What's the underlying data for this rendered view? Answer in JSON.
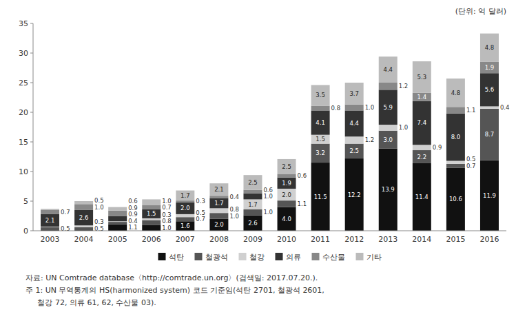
{
  "chart_data": {
    "type": "bar",
    "stacked": true,
    "data_labels": true,
    "grid": false,
    "legend": "bottom",
    "y_label": "(단위: 억 달러)",
    "annotations": [
      "자료: UN Comtrade database〈http://comtrade.un.org〉(검색일: 2017.07.20.).",
      "주 1: UN 무역통계의 HS(harmonized system) 코드 기준임(석탄 2701, 철광석 2601,",
      "     철강 72, 의류 61, 62, 수산물 03)."
    ],
    "categories": [
      "2003",
      "2004",
      "2005",
      "2006",
      "2007",
      "2008",
      "2009",
      "2010",
      "2011",
      "2012",
      "2013",
      "2014",
      "2015",
      "2016"
    ],
    "ylim": [
      0,
      35
    ],
    "yticks": [
      0,
      5,
      10,
      15,
      20,
      25,
      30,
      35
    ],
    "series": [
      {
        "name": "석탄",
        "color": "#111111",
        "values": [
          0.1,
          0.1,
          1.1,
          1.0,
          1.6,
          2.0,
          2.6,
          4.0,
          11.5,
          12.2,
          13.9,
          11.4,
          10.6,
          11.9
        ],
        "value_labels": [
          null,
          null,
          "1.1",
          "1.0",
          "1.6",
          "2.0",
          "2.6",
          "4.0",
          "11.5",
          "12.2",
          "13.9",
          "11.4",
          "10.6",
          "11.9"
        ]
      },
      {
        "name": "철광석",
        "color": "#555555",
        "values": [
          0.5,
          0.5,
          0.4,
          0.8,
          0.7,
          1.0,
          1.0,
          1.1,
          3.2,
          2.5,
          3.0,
          2.2,
          0.7,
          8.7
        ],
        "value_labels": [
          "0.5",
          "0.5",
          "0.4",
          "0.8",
          "0.7",
          "1.0",
          "1.0",
          "1.1",
          "3.2",
          "2.5",
          "3.0",
          "2.2",
          "0.7",
          "8.7"
        ]
      },
      {
        "name": "철강",
        "color": "#d0d0d0",
        "values": [
          0.1,
          0.3,
          0.1,
          0.3,
          0.5,
          0.8,
          1.7,
          2.0,
          1.5,
          1.2,
          1.0,
          0.9,
          0.5,
          0.4
        ],
        "value_labels": [
          null,
          "0.3",
          null,
          "0.3",
          "0.5",
          "0.8",
          "1.7",
          "2.0",
          "1.5",
          "1.2",
          "1.0",
          "0.9",
          "0.5",
          "0.4"
        ]
      },
      {
        "name": "의류",
        "color": "#333333",
        "values": [
          2.1,
          2.6,
          0.9,
          1.5,
          2.0,
          1.7,
          1.0,
          1.9,
          4.1,
          4.4,
          5.9,
          7.4,
          8.0,
          5.6
        ],
        "value_labels": [
          "2.1",
          "2.6",
          "0.9",
          "1.5",
          "2.0",
          "1.7",
          "1.0",
          "1.9",
          "4.1",
          "4.4",
          "5.9",
          "7.4",
          "8.0",
          "5.6"
        ]
      },
      {
        "name": "수산물",
        "color": "#888888",
        "values": [
          0.7,
          1.0,
          0.9,
          0.7,
          0.3,
          0.4,
          0.6,
          0.6,
          0.8,
          1.0,
          1.2,
          1.4,
          1.1,
          1.9
        ],
        "value_labels": [
          "0.7",
          "1.0",
          "0.9",
          "0.7",
          "0.3",
          "0.4",
          "0.6",
          "0.6",
          "0.8",
          "1.0",
          "1.2",
          "1.4",
          "1.1",
          "1.9"
        ]
      },
      {
        "name": "기타",
        "color": "#bbbbbb",
        "values": [
          0.2,
          0.5,
          0.6,
          1.0,
          1.7,
          2.1,
          2.5,
          2.5,
          3.5,
          3.7,
          4.4,
          5.3,
          4.8,
          4.8
        ],
        "value_labels": [
          null,
          "0.5",
          "0.6",
          "1.0",
          "1.7",
          "2.1",
          "2.5",
          "2.5",
          "3.5",
          "3.7",
          "4.4",
          "5.3",
          "4.8",
          "4.8"
        ]
      }
    ]
  }
}
